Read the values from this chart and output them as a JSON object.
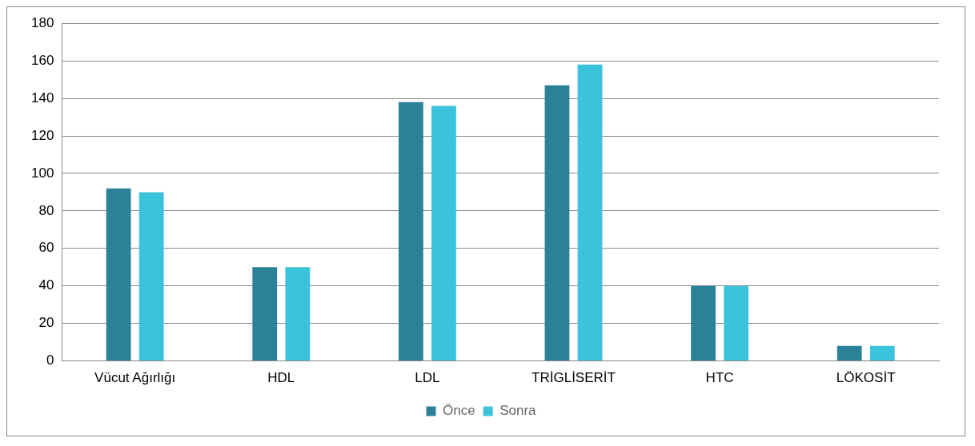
{
  "chart_data": {
    "type": "bar",
    "categories": [
      "Vücut Ağırlığı",
      "HDL",
      "LDL",
      "TRİGLİSERİT",
      "HTC",
      "LÖKOSİT"
    ],
    "series": [
      {
        "name": "Önce",
        "color": "#2b8197",
        "values": [
          92,
          50,
          138,
          147,
          40,
          8
        ]
      },
      {
        "name": "Sonra",
        "color": "#3cc3dc",
        "values": [
          90,
          50,
          136,
          158,
          40,
          8
        ]
      }
    ],
    "ylim": [
      0,
      180
    ],
    "yticks": [
      0,
      20,
      40,
      60,
      80,
      100,
      120,
      140,
      160,
      180
    ],
    "grid": "y",
    "legend": "bottom"
  }
}
